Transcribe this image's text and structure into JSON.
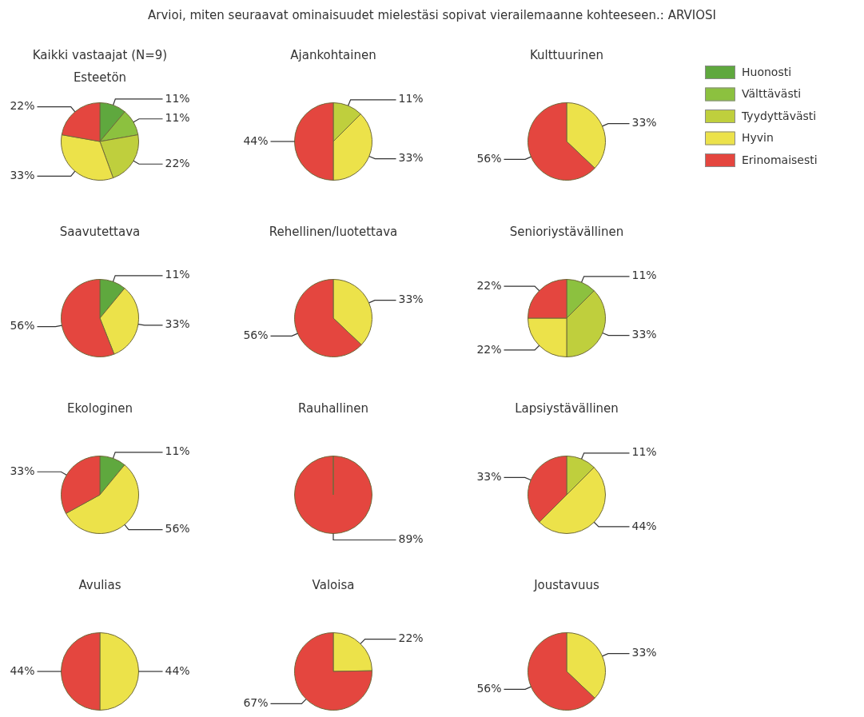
{
  "chart_data": [
    {
      "type": "other",
      "title": "Arvioi, miten seuraavat ominaisuudet mielestäsi sopivat vierailemaanne kohteeseen.: ARVIOSI"
    },
    {
      "type": "pie",
      "subtitle": "Kaikki vastaajat (N=9)",
      "title": "Esteetön",
      "values": [
        11,
        11,
        22,
        33,
        22
      ],
      "value_labels": [
        "11%",
        "11%",
        "22%",
        "33%",
        "22%"
      ],
      "colors": [
        "#5fa83e",
        "#8cc13f",
        "#bfcf3d",
        "#ece24a",
        "#e4463f"
      ]
    },
    {
      "type": "pie",
      "title": "Ajankohtainen",
      "values": [
        null,
        null,
        11,
        33,
        44
      ],
      "value_labels": [
        null,
        null,
        "11%",
        "33%",
        "44%"
      ],
      "colors": [
        "#5fa83e",
        "#8cc13f",
        "#bfcf3d",
        "#ece24a",
        "#e4463f"
      ]
    },
    {
      "type": "pie",
      "title": "Kulttuurinen",
      "legend": "right",
      "categories": [
        "Huonosti",
        "Välttävästi",
        "Tyydyttävästi",
        "Hyvin",
        "Erinomaisesti"
      ],
      "values": [
        null,
        null,
        null,
        33,
        56
      ],
      "value_labels": [
        null,
        null,
        null,
        "33%",
        "56%"
      ],
      "colors": [
        "#5fa83e",
        "#8cc13f",
        "#bfcf3d",
        "#ece24a",
        "#e4463f"
      ]
    },
    {
      "type": "pie",
      "title": "Saavutettava",
      "values": [
        11,
        null,
        null,
        33,
        56
      ],
      "value_labels": [
        "11%",
        null,
        null,
        "33%",
        "56%"
      ],
      "colors": [
        "#5fa83e",
        "#8cc13f",
        "#bfcf3d",
        "#ece24a",
        "#e4463f"
      ]
    },
    {
      "type": "pie",
      "title": "Rehellinen/luotettava",
      "values": [
        null,
        null,
        null,
        33,
        56
      ],
      "value_labels": [
        null,
        null,
        null,
        "33%",
        "56%"
      ],
      "colors": [
        "#5fa83e",
        "#8cc13f",
        "#bfcf3d",
        "#ece24a",
        "#e4463f"
      ]
    },
    {
      "type": "pie",
      "title": "Senioriystävällinen",
      "values": [
        null,
        11,
        33,
        22,
        22
      ],
      "value_labels": [
        null,
        "11%",
        "33%",
        "22%",
        "22%"
      ],
      "colors": [
        "#5fa83e",
        "#8cc13f",
        "#bfcf3d",
        "#ece24a",
        "#e4463f"
      ]
    },
    {
      "type": "pie",
      "title": "Ekologinen",
      "values": [
        11,
        null,
        null,
        56,
        33
      ],
      "value_labels": [
        "11%",
        null,
        null,
        "56%",
        "33%"
      ],
      "colors": [
        "#5fa83e",
        "#8cc13f",
        "#bfcf3d",
        "#ece24a",
        "#e4463f"
      ]
    },
    {
      "type": "pie",
      "title": "Rauhallinen",
      "values": [
        null,
        null,
        null,
        null,
        89
      ],
      "value_labels": [
        null,
        null,
        null,
        null,
        "89%"
      ],
      "colors": [
        "#5fa83e",
        "#8cc13f",
        "#bfcf3d",
        "#ece24a",
        "#e4463f"
      ]
    },
    {
      "type": "pie",
      "title": "Lapsiystävällinen",
      "values": [
        null,
        null,
        11,
        44,
        33
      ],
      "value_labels": [
        null,
        null,
        "11%",
        "44%",
        "33%"
      ],
      "colors": [
        "#5fa83e",
        "#8cc13f",
        "#bfcf3d",
        "#ece24a",
        "#e4463f"
      ]
    },
    {
      "type": "pie",
      "title": "Avulias",
      "values": [
        null,
        null,
        null,
        44,
        44
      ],
      "value_labels": [
        null,
        null,
        null,
        "44%",
        "44%"
      ],
      "colors": [
        "#5fa83e",
        "#8cc13f",
        "#bfcf3d",
        "#ece24a",
        "#e4463f"
      ]
    },
    {
      "type": "pie",
      "title": "Valoisa",
      "values": [
        null,
        null,
        null,
        22,
        67
      ],
      "value_labels": [
        null,
        null,
        null,
        "22%",
        "67%"
      ],
      "colors": [
        "#5fa83e",
        "#8cc13f",
        "#bfcf3d",
        "#ece24a",
        "#e4463f"
      ]
    },
    {
      "type": "pie",
      "title": "Joustavuus",
      "values": [
        null,
        null,
        null,
        33,
        56
      ],
      "value_labels": [
        null,
        null,
        null,
        "33%",
        "56%"
      ],
      "colors": [
        "#5fa83e",
        "#8cc13f",
        "#bfcf3d",
        "#ece24a",
        "#e4463f"
      ]
    }
  ]
}
